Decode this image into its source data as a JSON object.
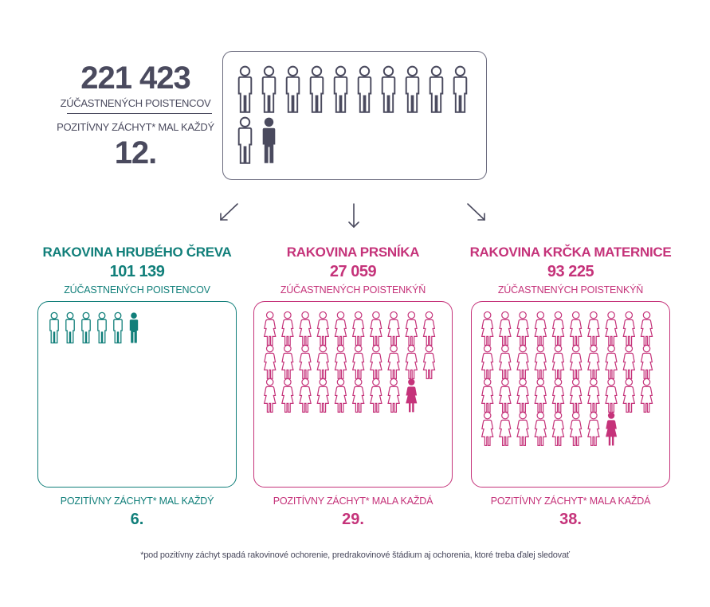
{
  "colors": {
    "dark": "#4a4a5e",
    "teal": "#117f7a",
    "pink": "#c5337a"
  },
  "summary": {
    "count": "221 423",
    "count_label": "ZÚČASTNENÝCH POISTENCOV",
    "positive_label": "POZITÍVNY ZÁCHYT* MAL KAŽDÝ",
    "positive_every": "12.",
    "ratio": {
      "total": 12,
      "positive": 1
    }
  },
  "columns": [
    {
      "title": "RAKOVINA HRUBÉHO ČREVA",
      "count": "101 139",
      "count_label": "ZÚČASTNENÝCH POISTENCOV",
      "positive_label": "POZITÍVNY ZÁCHYT* MAL KAŽDÝ",
      "positive_every": "6.",
      "ratio": {
        "total": 6,
        "positive": 1
      },
      "icon": "man-icon",
      "color": "#117f7a"
    },
    {
      "title": "RAKOVINA PRSNÍKA",
      "count": "27 059",
      "count_label": "ZÚČASTNENÝCH POISTENKÝŇ",
      "positive_label": "POZITÍVNY ZÁCHYT* MALA KAŽDÁ",
      "positive_every": "29.",
      "ratio": {
        "total": 29,
        "positive": 1
      },
      "icon": "woman-icon",
      "color": "#c5337a"
    },
    {
      "title": "RAKOVINA KRČKA MATERNICE",
      "count": "93 225",
      "count_label": "ZÚČASTNENÝCH POISTENKÝŇ",
      "positive_label": "POZITÍVNY ZÁCHYT* MALA KAŽDÁ",
      "positive_every": "38.",
      "ratio": {
        "total": 38,
        "positive": 1
      },
      "icon": "woman-icon",
      "color": "#c5337a"
    }
  ],
  "footnote": "*pod pozitívny záchyt spadá rakovinové ochorenie, predrakovinové štádium aj ochorenia, ktoré treba ďalej sledovať"
}
